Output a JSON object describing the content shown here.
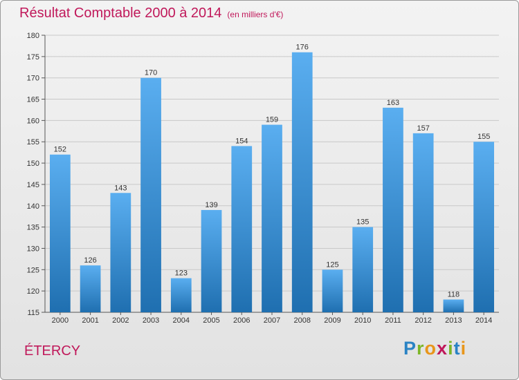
{
  "chart_data": {
    "type": "bar",
    "title": "Résultat Comptable 2000 à 2014",
    "subtitle": "(en milliers d'€)",
    "categories": [
      "2000",
      "2001",
      "2002",
      "2003",
      "2004",
      "2005",
      "2006",
      "2007",
      "2008",
      "2009",
      "2010",
      "2011",
      "2012",
      "2013",
      "2014"
    ],
    "values": [
      152,
      126,
      143,
      170,
      123,
      139,
      154,
      159,
      176,
      125,
      135,
      163,
      157,
      118,
      155
    ],
    "ylim": [
      115,
      180
    ],
    "yticks": [
      115,
      120,
      125,
      130,
      135,
      140,
      145,
      150,
      155,
      160,
      165,
      170,
      175,
      180
    ],
    "xlabel": "",
    "ylabel": "",
    "grid": true,
    "bar_color_top": "#5aaef0",
    "bar_color_bottom": "#1f6fb0"
  },
  "location": "ÉTERCY",
  "logo": {
    "p": "P",
    "r": "r",
    "o": "o",
    "x": "x",
    "i": "i",
    "t": "t",
    "i2": "i"
  },
  "colors": {
    "accent": "#c0185a"
  }
}
